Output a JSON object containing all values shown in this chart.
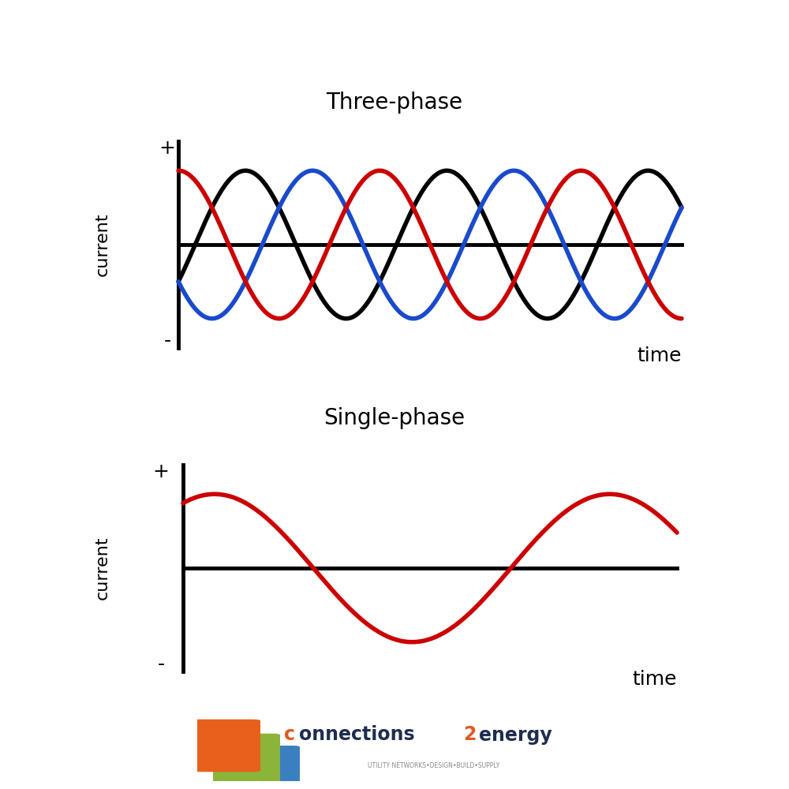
{
  "title_three": "Three-phase",
  "title_single": "Single-phase",
  "background_color": "#ffffff",
  "three_phase": {
    "phase1_color": "#cc0000",
    "phase2_color": "#000000",
    "phase3_color": "#1a4acc",
    "line_width": 4.0,
    "amplitude": 1.0,
    "freq_cycles": 2.5,
    "phase_shift_deg": 120
  },
  "single_phase": {
    "color": "#cc0000",
    "line_width": 4.0,
    "amplitude": 1.0,
    "freq_cycles": 1.25
  },
  "axis_color": "#000000",
  "axis_linewidth": 3.5,
  "label_current": "current",
  "label_time": "time",
  "label_plus": "+",
  "label_minus": "-",
  "title_fontsize": 20,
  "label_fontsize": 18,
  "axis_label_fontsize": 16,
  "logo_color_main": "#1e2d4f",
  "logo_color_orange": "#e05a20",
  "logo_sub": "UTILITY NETWORKS•DESIGN•BUILD•SUPPLY"
}
